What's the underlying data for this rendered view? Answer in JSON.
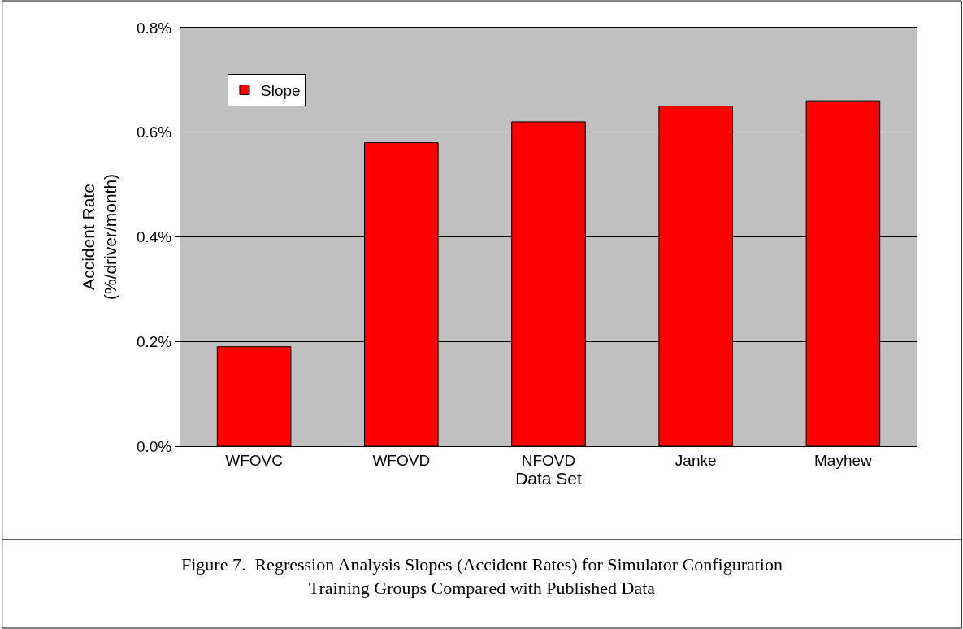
{
  "chart_data": {
    "type": "bar",
    "xlabel": "Data Set",
    "ylabel": "Accident Rate\n(%/driver/month)",
    "categories": [
      "WFOVC",
      "WFOVD",
      "NFOVD",
      "Janke",
      "Mayhew"
    ],
    "series": [
      {
        "name": "Slope",
        "color": "#ff0000",
        "values": [
          0.19,
          0.58,
          0.62,
          0.65,
          0.66
        ]
      }
    ],
    "ylim": [
      0,
      0.8
    ],
    "yticks": [
      {
        "value": 0,
        "label": "0.0%"
      },
      {
        "value": 0.2,
        "label": "0.2%"
      },
      {
        "value": 0.4,
        "label": "0.4%"
      },
      {
        "value": 0.6,
        "label": "0.6%"
      },
      {
        "value": 0.8,
        "label": "0.8%"
      }
    ],
    "grid": "y",
    "legend": "top left",
    "annotations": [
      "Figure 7.  Regression Analysis Slopes (Accident Rates) for Simulator Configuration\nTraining Groups Compared with Published Data"
    ]
  }
}
